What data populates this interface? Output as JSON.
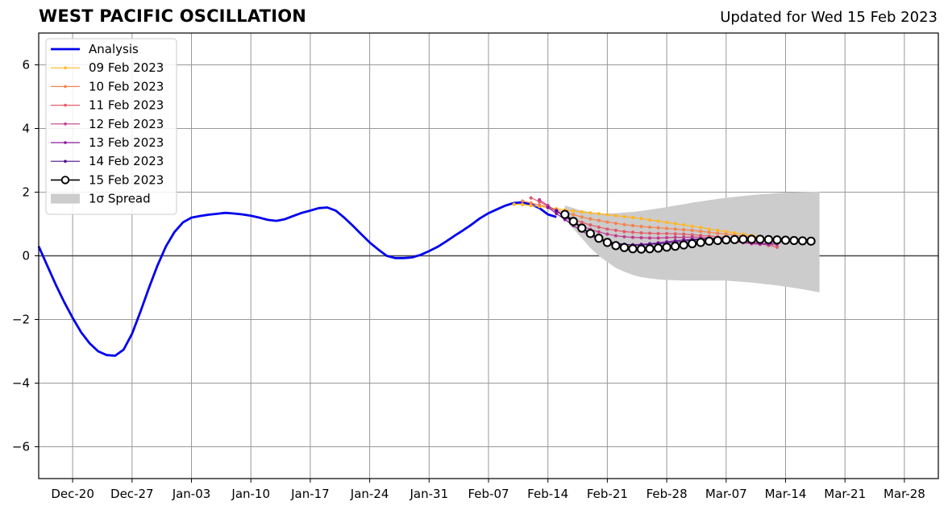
{
  "header": {
    "title": "WEST PACIFIC OSCILLATION",
    "updated": "Updated for Wed 15 Feb 2023"
  },
  "chart_data": {
    "type": "line",
    "title": "WEST PACIFIC OSCILLATION",
    "subtitle": "Updated for Wed 15 Feb 2023",
    "xlabel": "",
    "ylabel": "",
    "x_start_date": "2022-12-16",
    "x_end_date": "2023-04-01",
    "ylim": [
      -7,
      7
    ],
    "grid": true,
    "legend_position": "top-left",
    "x_tick_labels": [
      "Dec-20",
      "Dec-27",
      "Jan-03",
      "Jan-10",
      "Jan-17",
      "Jan-24",
      "Jan-31",
      "Feb-07",
      "Feb-14",
      "Feb-21",
      "Feb-28",
      "Mar-07",
      "Mar-14",
      "Mar-21",
      "Mar-28"
    ],
    "x_tick_dates": [
      "2022-12-20",
      "2022-12-27",
      "2023-01-03",
      "2023-01-10",
      "2023-01-17",
      "2023-01-24",
      "2023-01-31",
      "2023-02-07",
      "2023-02-14",
      "2023-02-21",
      "2023-02-28",
      "2023-03-07",
      "2023-03-14",
      "2023-03-21",
      "2023-03-28"
    ],
    "y_ticks": [
      -6,
      -4,
      -2,
      0,
      2,
      4,
      6
    ],
    "y_tick_labels": [
      "−6",
      "−4",
      "−2",
      "0",
      "2",
      "4",
      "6"
    ],
    "analysis": {
      "name": "Analysis",
      "color": "#0000ee",
      "start_date": "2022-12-16",
      "values": [
        0.3,
        -0.3,
        -0.9,
        -1.45,
        -1.95,
        -2.4,
        -2.75,
        -3.0,
        -3.12,
        -3.14,
        -2.95,
        -2.45,
        -1.75,
        -1.0,
        -0.3,
        0.3,
        0.75,
        1.05,
        1.2,
        1.25,
        1.29,
        1.32,
        1.35,
        1.33,
        1.3,
        1.26,
        1.2,
        1.13,
        1.1,
        1.15,
        1.25,
        1.35,
        1.42,
        1.5,
        1.52,
        1.42,
        1.2,
        0.95,
        0.68,
        0.42,
        0.2,
        0.0,
        -0.07,
        -0.07,
        -0.05,
        0.03,
        0.15,
        0.28,
        0.45,
        0.63,
        0.8,
        0.98,
        1.18,
        1.34,
        1.46,
        1.58,
        1.66,
        1.68,
        1.62,
        1.5,
        1.3,
        1.22
      ]
    },
    "forecasts": [
      {
        "name": "09 Feb 2023",
        "color": "#ffb626",
        "start_date": "2023-02-10",
        "values": [
          1.62,
          1.61,
          1.58,
          1.55,
          1.52,
          1.48,
          1.44,
          1.41,
          1.38,
          1.35,
          1.32,
          1.29,
          1.26,
          1.23,
          1.2,
          1.17,
          1.13,
          1.09,
          1.05,
          1.01,
          0.97,
          0.93,
          0.89,
          0.84,
          0.8,
          0.76,
          0.72,
          0.68,
          0.64,
          0.6
        ]
      },
      {
        "name": "10 Feb 2023",
        "color": "#f4844f",
        "start_date": "2023-02-11",
        "values": [
          1.72,
          1.66,
          1.6,
          1.52,
          1.44,
          1.36,
          1.29,
          1.22,
          1.16,
          1.11,
          1.06,
          1.02,
          0.98,
          0.95,
          0.92,
          0.9,
          0.88,
          0.86,
          0.84,
          0.82,
          0.8,
          0.77,
          0.74,
          0.71,
          0.68,
          0.65,
          0.62,
          0.6,
          0.58
        ]
      },
      {
        "name": "11 Feb 2023",
        "color": "#e35c6b",
        "start_date": "2023-02-12",
        "values": [
          1.82,
          1.7,
          1.55,
          1.4,
          1.27,
          1.15,
          1.05,
          0.97,
          0.9,
          0.84,
          0.8,
          0.76,
          0.74,
          0.72,
          0.71,
          0.7,
          0.7,
          0.69,
          0.68,
          0.66,
          0.64,
          0.62,
          0.6,
          0.57,
          0.54,
          0.5,
          0.44,
          0.38,
          0.33,
          0.27
        ]
      },
      {
        "name": "12 Feb 2023",
        "color": "#c03d8c",
        "start_date": "2023-02-13",
        "values": [
          1.76,
          1.58,
          1.4,
          1.22,
          1.07,
          0.94,
          0.83,
          0.75,
          0.68,
          0.63,
          0.6,
          0.58,
          0.57,
          0.56,
          0.56,
          0.57,
          0.58,
          0.58,
          0.59,
          0.58,
          0.56,
          0.53,
          0.49,
          0.45,
          0.41,
          0.38,
          0.36,
          0.35,
          0.35
        ]
      },
      {
        "name": "13 Feb 2023",
        "color": "#8b1a9c",
        "start_date": "2023-02-14",
        "values": [
          1.52,
          1.33,
          1.14,
          0.95,
          0.78,
          0.63,
          0.51,
          0.42,
          0.37,
          0.35,
          0.35,
          0.36,
          0.38,
          0.41,
          0.44,
          0.47,
          0.5,
          0.52,
          0.53,
          0.53,
          0.52,
          0.5,
          0.47,
          0.44,
          0.41,
          0.39,
          0.38,
          0.4
        ]
      },
      {
        "name": "14 Feb 2023",
        "color": "#4b0f8a",
        "start_date": "2023-02-15",
        "values": [
          1.42,
          1.24,
          1.05,
          0.87,
          0.7,
          0.56,
          0.46,
          0.4,
          0.36,
          0.34,
          0.34,
          0.36,
          0.38,
          0.4,
          0.43,
          0.46,
          0.49,
          0.52,
          0.54,
          0.55,
          0.55,
          0.54,
          0.53,
          0.52,
          0.5,
          0.48,
          0.47,
          0.46
        ]
      },
      {
        "name": "15 Feb 2023",
        "color": "#000000",
        "marker": "open-circle",
        "start_date": "2023-02-16",
        "values": [
          1.3,
          1.08,
          0.87,
          0.7,
          0.55,
          0.42,
          0.32,
          0.26,
          0.22,
          0.21,
          0.22,
          0.24,
          0.27,
          0.3,
          0.34,
          0.38,
          0.42,
          0.46,
          0.48,
          0.5,
          0.51,
          0.52,
          0.52,
          0.52,
          0.51,
          0.5,
          0.49,
          0.48,
          0.47,
          0.46
        ]
      }
    ],
    "spread": {
      "name": "1σ Spread",
      "color": "#cccccc",
      "start_date": "2023-02-16",
      "upper": [
        1.58,
        1.5,
        1.42,
        1.37,
        1.34,
        1.33,
        1.34,
        1.36,
        1.38,
        1.41,
        1.45,
        1.49,
        1.53,
        1.58,
        1.62,
        1.67,
        1.71,
        1.75,
        1.79,
        1.82,
        1.85,
        1.88,
        1.91,
        1.93,
        1.95,
        1.97,
        1.98,
        1.99,
        2.0,
        2.01,
        2.02
      ],
      "lower": [
        1.15,
        0.85,
        0.55,
        0.25,
        0.0,
        -0.2,
        -0.38,
        -0.5,
        -0.6,
        -0.67,
        -0.71,
        -0.74,
        -0.76,
        -0.77,
        -0.78,
        -0.78,
        -0.78,
        -0.78,
        -0.78,
        -0.78,
        -0.8,
        -0.82,
        -0.84,
        -0.87,
        -0.9,
        -0.93,
        -0.97,
        -1.01,
        -1.05,
        -1.1,
        -1.15
      ]
    },
    "legend": [
      {
        "label": "Analysis",
        "color": "#0000ee",
        "style": "thick-line"
      },
      {
        "label": "09 Feb 2023",
        "color": "#ffb626",
        "style": "line-dot"
      },
      {
        "label": "10 Feb 2023",
        "color": "#f4844f",
        "style": "line-dot"
      },
      {
        "label": "11 Feb 2023",
        "color": "#e35c6b",
        "style": "line-dot"
      },
      {
        "label": "12 Feb 2023",
        "color": "#c03d8c",
        "style": "line-dot"
      },
      {
        "label": "13 Feb 2023",
        "color": "#8b1a9c",
        "style": "line-dot"
      },
      {
        "label": "14 Feb 2023",
        "color": "#4b0f8a",
        "style": "line-dot"
      },
      {
        "label": "15 Feb 2023",
        "color": "#000000",
        "style": "line-circle"
      },
      {
        "label": "1σ Spread",
        "color": "#cccccc",
        "style": "patch"
      }
    ]
  }
}
